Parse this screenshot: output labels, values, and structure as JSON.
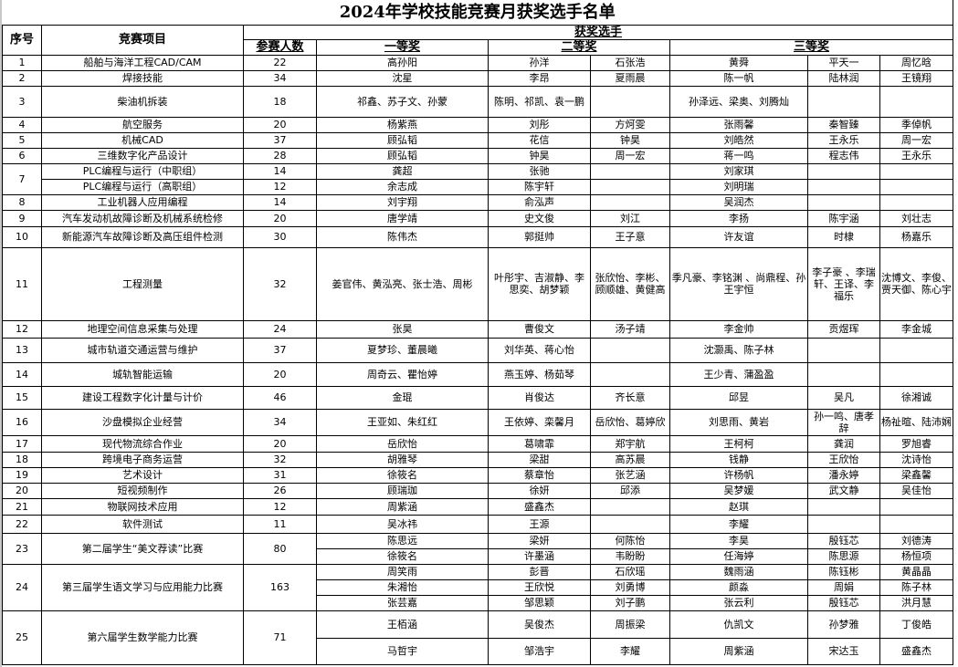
{
  "title": "2024年学校技能竞赛月获奖选手名单",
  "headers": {
    "no": "序号",
    "project": "竞赛项目",
    "winners": "获奖选手",
    "count": "参赛人数",
    "first": "一等奖",
    "second": "二等奖",
    "third": "三等奖"
  },
  "groups": [
    {
      "no": "1",
      "entries": [
        {
          "project": "船舶与海洋工程CAD/CAM",
          "count": "22",
          "first": "高孙阳",
          "second": [
            "孙洋",
            "石张浩"
          ],
          "third": [
            "黄舜",
            "平天一",
            "周忆晗"
          ]
        }
      ]
    },
    {
      "no": "2",
      "entries": [
        {
          "project": "焊接技能",
          "count": "34",
          "first": "沈星",
          "second": [
            "李昂",
            "夏雨晨"
          ],
          "third": [
            "陈一帆",
            "陆林润",
            "王镜翔"
          ]
        }
      ]
    },
    {
      "no": "3",
      "entries": [
        {
          "project": "柴油机拆装",
          "count": "18",
          "first": "祁鑫、苏子文、孙蒙",
          "second": [
            "陈明、祁凯、袁一鹏",
            ""
          ],
          "third": [
            "孙泽远、梁奥、刘腾灿",
            "",
            ""
          ]
        }
      ]
    },
    {
      "no": "4",
      "entries": [
        {
          "project": "航空服务",
          "count": "20",
          "first": "杨紫燕",
          "second": [
            "刘彤",
            "方炣雯"
          ],
          "third": [
            "张雨馨",
            "秦智臻",
            "季倬帆"
          ]
        }
      ]
    },
    {
      "no": "5",
      "entries": [
        {
          "project": "机械CAD",
          "count": "37",
          "first": "顾弘韬",
          "second": [
            "花信",
            "钟昊"
          ],
          "third": [
            "刘皓然",
            "王永乐",
            "周一宏"
          ]
        }
      ]
    },
    {
      "no": "6",
      "entries": [
        {
          "project": "三维数字化产品设计",
          "count": "28",
          "first": "顾弘韬",
          "second": [
            "钟昊",
            "周一宏"
          ],
          "third": [
            "蒋一鸣",
            "程志伟",
            "王永乐"
          ]
        }
      ]
    },
    {
      "no": "7",
      "entries": [
        {
          "project": "PLC编程与运行（中职组）",
          "count": "14",
          "first": "龚超",
          "second": [
            "张驰",
            ""
          ],
          "third": [
            "刘家琪",
            "",
            ""
          ]
        },
        {
          "project": "PLC编程与运行（高职组）",
          "count": "12",
          "first": "余志成",
          "second": [
            "陈宇轩",
            ""
          ],
          "third": [
            "刘明瑞",
            "",
            ""
          ]
        }
      ]
    },
    {
      "no": "8",
      "entries": [
        {
          "project": "工业机器人应用编程",
          "count": "14",
          "first": "刘宇翔",
          "second": [
            "俞泓声",
            ""
          ],
          "third": [
            "吴润杰",
            "",
            ""
          ]
        }
      ]
    },
    {
      "no": "9",
      "entries": [
        {
          "project": "汽车发动机故障诊断及机械系统检修",
          "count": "20",
          "first": "唐学靖",
          "second": [
            "史文俊",
            "刘江"
          ],
          "third": [
            "李扬",
            "陈宇涵",
            "刘壮志"
          ]
        }
      ]
    },
    {
      "no": "10",
      "entries": [
        {
          "project": "新能源汽车故障诊断及高压组件检测",
          "count": "30",
          "first": "陈伟杰",
          "second": [
            "郭挺帅",
            "王子意"
          ],
          "third": [
            "许友谊",
            "时棣",
            "杨嘉乐"
          ]
        }
      ]
    },
    {
      "no": "11",
      "entries": [
        {
          "project": "工程测量",
          "count": "32",
          "first": "姜官伟、黄泓亮、张士浩、周彬",
          "second": [
            "叶彤宇、吉淑静、李思奕、胡梦颖",
            "张欣怡、李彬、顾顺雄、黄健高"
          ],
          "third": [
            "季凡豪、李铭渊 、尚鼎程、孙王宇恒",
            "李子豪 、李瑞轩、王译、李福乐",
            "沈博文、李俊、贾天御、陈心宇"
          ]
        }
      ]
    },
    {
      "no": "12",
      "entries": [
        {
          "project": "地理空间信息采集与处理",
          "count": "24",
          "first": "张昊",
          "second": [
            "曹俊文",
            "汤子靖"
          ],
          "third": [
            "李金帅",
            "贡煜珲",
            "李金城"
          ]
        }
      ]
    },
    {
      "no": "13",
      "entries": [
        {
          "project": "城市轨道交通运营与维护",
          "count": "37",
          "first": "夏梦珍、董晨曦",
          "second": [
            "刘华英、蒋心怡",
            ""
          ],
          "third": [
            "沈灏禹、陈子林",
            "",
            ""
          ]
        }
      ]
    },
    {
      "no": "14",
      "entries": [
        {
          "project": "城轨智能运输",
          "count": "20",
          "first": "周奇云、瞿怡婷",
          "second": [
            "燕玉婷、杨茹琴",
            ""
          ],
          "third": [
            "王少青、蒲盈盈",
            "",
            ""
          ]
        }
      ]
    },
    {
      "no": "15",
      "entries": [
        {
          "project": "建设工程数字化计量与计价",
          "count": "46",
          "first": "金琨",
          "second": [
            "肖俊达",
            "齐长意"
          ],
          "third": [
            "邱昱",
            "吴凡",
            "徐湘诚"
          ]
        }
      ]
    },
    {
      "no": "16",
      "entries": [
        {
          "project": "沙盘模拟企业经营",
          "count": "34",
          "first": "王亚如、朱红红",
          "second": [
            "王依婷、栾馨月",
            "岳欣怡、葛婷欣"
          ],
          "third": [
            "刘思雨、黄岩",
            "孙一鸣、唐孝辞",
            "杨祉暄、陆沛娴"
          ]
        }
      ]
    },
    {
      "no": "17",
      "entries": [
        {
          "project": "现代物流综合作业",
          "count": "20",
          "first": "岳欣怡",
          "second": [
            "葛啸霏",
            "郑宇航"
          ],
          "third": [
            "王柯柯",
            "龚润",
            "罗旭睿"
          ]
        }
      ]
    },
    {
      "no": "18",
      "entries": [
        {
          "project": "跨境电子商务运营",
          "count": "32",
          "first": "胡雅琴",
          "second": [
            "梁甜",
            "高苏晨"
          ],
          "third": [
            "钱静",
            "王欣怡",
            "沈诗怡"
          ]
        }
      ]
    },
    {
      "no": "19",
      "entries": [
        {
          "project": "艺术设计",
          "count": "31",
          "first": "徐筱名",
          "second": [
            "蔡章怡",
            "张艺涵"
          ],
          "third": [
            "许杨帆",
            "潘永婷",
            "梁鑫馨"
          ]
        }
      ]
    },
    {
      "no": "20",
      "entries": [
        {
          "project": "短视频制作",
          "count": "26",
          "first": "顾瑞珈",
          "second": [
            "徐妍",
            "邱添"
          ],
          "third": [
            "吴梦媛",
            "武文静",
            "吴佳怡"
          ]
        }
      ]
    },
    {
      "no": "21",
      "entries": [
        {
          "project": "物联网技术应用",
          "count": "12",
          "first": "周紫涵",
          "second": [
            "盛鑫杰",
            ""
          ],
          "third": [
            "赵琪",
            "",
            ""
          ]
        }
      ]
    },
    {
      "no": "22",
      "entries": [
        {
          "project": "软件测试",
          "count": "11",
          "first": "吴冰祎",
          "second": [
            "王源",
            ""
          ],
          "third": [
            "李耀",
            "",
            ""
          ]
        }
      ]
    },
    {
      "no": "23",
      "project": "第二届学生“美文荐读”比赛",
      "count": "80",
      "entries": [
        {
          "first": "陈思远",
          "second": [
            "梁妍",
            "何陈怡"
          ],
          "third": [
            "李昊",
            "殷钰芯",
            "刘德涛"
          ]
        },
        {
          "first": "徐筱名",
          "second": [
            "许墨涵",
            "韦盼盼"
          ],
          "third": [
            "任海婷",
            "陈思源",
            "杨恒项"
          ]
        }
      ]
    },
    {
      "no": "24",
      "project": "第三届学生语文学习与应用能力比赛",
      "count": "163",
      "entries": [
        {
          "first": "周笑雨",
          "second": [
            "彭晋",
            "石欣瑶"
          ],
          "third": [
            "魏雨涵",
            "陈钰彬",
            "黄晶晶"
          ]
        },
        {
          "first": "朱湘怡",
          "second": [
            "王欣悦",
            "刘勇博"
          ],
          "third": [
            "颜淼",
            "周娟",
            "陈子林"
          ]
        },
        {
          "first": "张芸嘉",
          "second": [
            "邹思颖",
            "刘子鹏"
          ],
          "third": [
            "张云利",
            "殷钰芯",
            "洪月慧"
          ]
        }
      ]
    },
    {
      "no": "25",
      "project": "第六届学生数学能力比赛",
      "count": "71",
      "entries": [
        {
          "first": "王栢涵",
          "second": [
            "吴俊杰",
            "周振梁"
          ],
          "third": [
            "仇凯文",
            "孙梦雅",
            "丁俊皓"
          ]
        },
        {
          "first": "马哲宇",
          "second": [
            "邹浩宇",
            "李耀"
          ],
          "third": [
            "周紫涵",
            "宋达玉",
            "盛鑫杰"
          ]
        }
      ]
    }
  ]
}
